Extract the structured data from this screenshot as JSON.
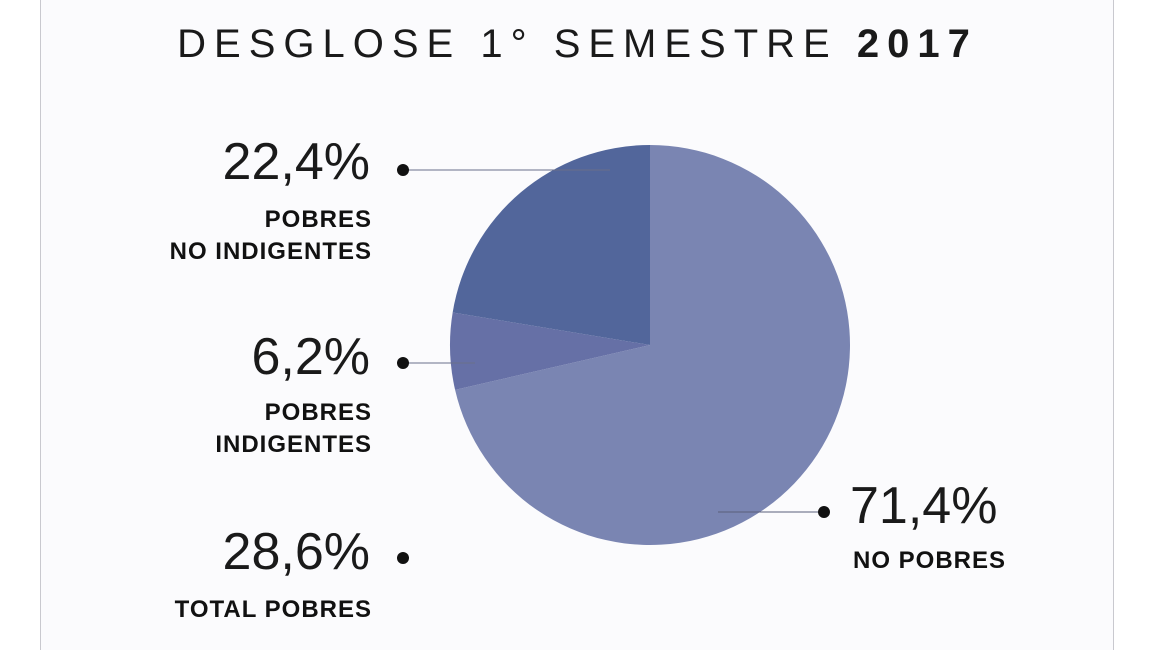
{
  "title": {
    "main": "DESGLOSE 1° SEMESTRE",
    "year": "2017"
  },
  "chart_data": {
    "type": "pie",
    "title": "DESGLOSE 1° SEMESTRE 2017",
    "slices": [
      {
        "label": "NO POBRES",
        "value": 71.4,
        "value_label": "71,4%",
        "color": "#7a85b2"
      },
      {
        "label": "POBRES INDIGENTES",
        "value": 6.2,
        "value_label": "6,2%",
        "color": "#6670a6"
      },
      {
        "label": "POBRES NO INDIGENTES",
        "value": 22.4,
        "value_label": "22,4%",
        "color": "#52669b"
      }
    ],
    "summary": {
      "label": "TOTAL POBRES",
      "value": 28.6,
      "value_label": "28,6%"
    }
  },
  "labels": {
    "no_indigentes_line1": "POBRES",
    "no_indigentes_line2": "NO INDIGENTES",
    "indigentes_line1": "POBRES",
    "indigentes_line2": "INDIGENTES",
    "total": "TOTAL POBRES",
    "no_pobres": "NO POBRES"
  }
}
